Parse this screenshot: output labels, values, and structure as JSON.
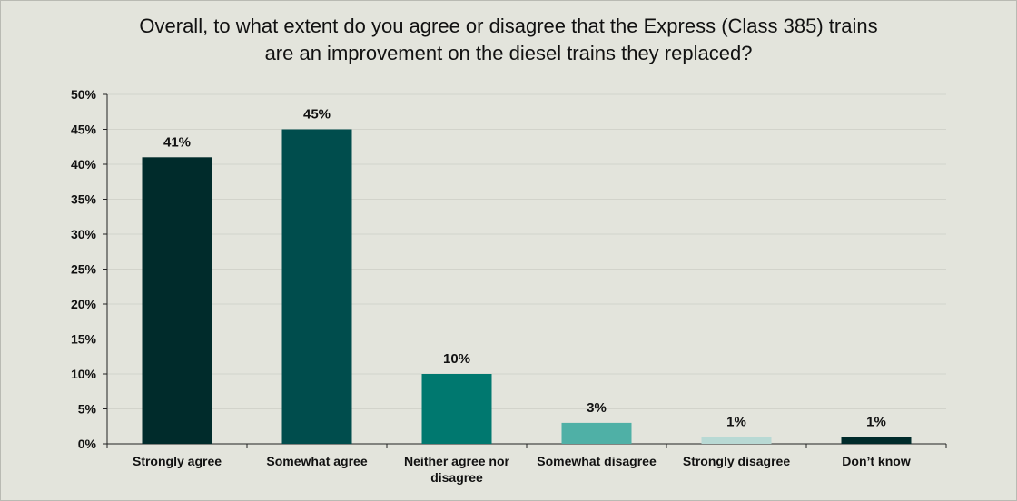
{
  "chart_data": {
    "type": "bar",
    "title_lines": [
      "Overall, to what extent do you agree or disagree that the Express (Class 385) trains",
      "are an improvement on the diesel trains they replaced?"
    ],
    "categories": [
      [
        "Strongly agree"
      ],
      [
        "Somewhat agree"
      ],
      [
        "Neither agree nor",
        "disagree"
      ],
      [
        "Somewhat disagree"
      ],
      [
        "Strongly disagree"
      ],
      [
        "Don’t know"
      ]
    ],
    "values": [
      41,
      45,
      10,
      3,
      1,
      1
    ],
    "data_labels": [
      "41%",
      "45%",
      "10%",
      "3%",
      "1%",
      "1%"
    ],
    "colors": [
      "#002b2b",
      "#004d4d",
      "#00786f",
      "#4fb0a6",
      "#b8d9d4",
      "#002b2b"
    ],
    "y_ticks": [
      0,
      5,
      10,
      15,
      20,
      25,
      30,
      35,
      40,
      45,
      50
    ],
    "y_tick_labels": [
      "0%",
      "5%",
      "10%",
      "15%",
      "20%",
      "25%",
      "30%",
      "35%",
      "40%",
      "45%",
      "50%"
    ],
    "ylim": [
      0,
      50
    ],
    "grid": true,
    "xlabel": "",
    "ylabel": ""
  }
}
